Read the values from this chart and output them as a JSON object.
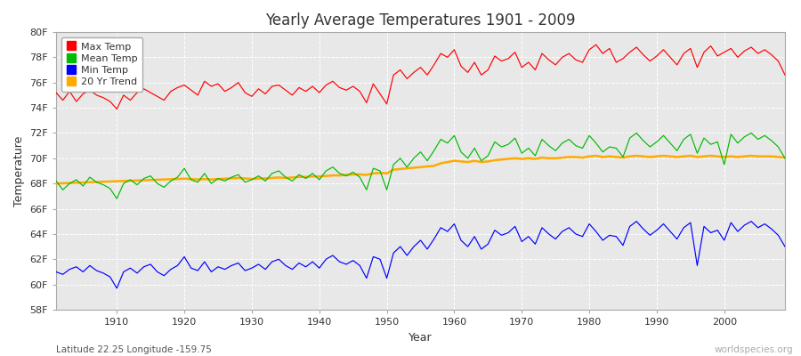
{
  "title": "Yearly Average Temperatures 1901 - 2009",
  "xlabel": "Year",
  "ylabel": "Temperature",
  "subtitle_left": "Latitude 22.25 Longitude -159.75",
  "subtitle_right": "worldspecies.org",
  "years": [
    1901,
    1902,
    1903,
    1904,
    1905,
    1906,
    1907,
    1908,
    1909,
    1910,
    1911,
    1912,
    1913,
    1914,
    1915,
    1916,
    1917,
    1918,
    1919,
    1920,
    1921,
    1922,
    1923,
    1924,
    1925,
    1926,
    1927,
    1928,
    1929,
    1930,
    1931,
    1932,
    1933,
    1934,
    1935,
    1936,
    1937,
    1938,
    1939,
    1940,
    1941,
    1942,
    1943,
    1944,
    1945,
    1946,
    1947,
    1948,
    1949,
    1950,
    1951,
    1952,
    1953,
    1954,
    1955,
    1956,
    1957,
    1958,
    1959,
    1960,
    1961,
    1962,
    1963,
    1964,
    1965,
    1966,
    1967,
    1968,
    1969,
    1970,
    1971,
    1972,
    1973,
    1974,
    1975,
    1976,
    1977,
    1978,
    1979,
    1980,
    1981,
    1982,
    1983,
    1984,
    1985,
    1986,
    1987,
    1988,
    1989,
    1990,
    1991,
    1992,
    1993,
    1994,
    1995,
    1996,
    1997,
    1998,
    1999,
    2000,
    2001,
    2002,
    2003,
    2004,
    2005,
    2006,
    2007,
    2008,
    2009
  ],
  "max_temp": [
    75.2,
    74.6,
    75.3,
    74.5,
    75.1,
    75.4,
    75.0,
    74.8,
    74.5,
    73.9,
    75.0,
    74.6,
    75.2,
    75.5,
    75.2,
    74.9,
    74.6,
    75.3,
    75.6,
    75.8,
    75.4,
    75.0,
    76.1,
    75.7,
    75.9,
    75.3,
    75.6,
    76.0,
    75.2,
    74.9,
    75.5,
    75.1,
    75.7,
    75.8,
    75.4,
    75.0,
    75.6,
    75.3,
    75.7,
    75.2,
    75.8,
    76.1,
    75.6,
    75.4,
    75.7,
    75.3,
    74.4,
    75.9,
    75.1,
    74.3,
    76.6,
    77.0,
    76.3,
    76.8,
    77.2,
    76.6,
    77.4,
    78.3,
    78.0,
    78.6,
    77.3,
    76.8,
    77.6,
    76.6,
    77.0,
    78.1,
    77.7,
    77.9,
    78.4,
    77.2,
    77.6,
    77.0,
    78.3,
    77.8,
    77.4,
    78.0,
    78.3,
    77.8,
    77.6,
    78.6,
    79.0,
    78.3,
    78.7,
    77.6,
    77.9,
    78.4,
    78.8,
    78.2,
    77.7,
    78.1,
    78.6,
    78.0,
    77.4,
    78.3,
    78.7,
    77.2,
    78.4,
    78.9,
    78.1,
    78.4,
    78.7,
    78.0,
    78.5,
    78.8,
    78.3,
    78.6,
    78.2,
    77.7,
    76.6
  ],
  "mean_temp": [
    68.2,
    67.5,
    68.0,
    68.3,
    67.8,
    68.5,
    68.1,
    67.9,
    67.6,
    66.8,
    68.0,
    68.3,
    67.9,
    68.4,
    68.6,
    68.0,
    67.7,
    68.2,
    68.5,
    69.2,
    68.3,
    68.1,
    68.8,
    68.0,
    68.4,
    68.2,
    68.5,
    68.7,
    68.1,
    68.3,
    68.6,
    68.2,
    68.8,
    69.0,
    68.5,
    68.2,
    68.7,
    68.4,
    68.8,
    68.3,
    69.0,
    69.3,
    68.8,
    68.6,
    68.9,
    68.5,
    67.5,
    69.2,
    69.0,
    67.5,
    69.5,
    70.0,
    69.3,
    70.0,
    70.5,
    69.8,
    70.6,
    71.5,
    71.2,
    71.8,
    70.5,
    70.0,
    70.8,
    69.8,
    70.2,
    71.3,
    70.9,
    71.1,
    71.6,
    70.4,
    70.8,
    70.2,
    71.5,
    71.0,
    70.6,
    71.2,
    71.5,
    71.0,
    70.8,
    71.8,
    71.2,
    70.5,
    70.9,
    70.8,
    70.1,
    71.6,
    72.0,
    71.4,
    70.9,
    71.3,
    71.8,
    71.2,
    70.6,
    71.5,
    71.9,
    70.4,
    71.6,
    71.1,
    71.3,
    69.5,
    71.9,
    71.2,
    71.7,
    72.0,
    71.5,
    71.8,
    71.4,
    70.9,
    70.0
  ],
  "min_temp": [
    61.0,
    60.8,
    61.2,
    61.4,
    61.0,
    61.5,
    61.1,
    60.9,
    60.6,
    59.7,
    61.0,
    61.3,
    60.9,
    61.4,
    61.6,
    61.0,
    60.7,
    61.2,
    61.5,
    62.2,
    61.3,
    61.1,
    61.8,
    61.0,
    61.4,
    61.2,
    61.5,
    61.7,
    61.1,
    61.3,
    61.6,
    61.2,
    61.8,
    62.0,
    61.5,
    61.2,
    61.7,
    61.4,
    61.8,
    61.3,
    62.0,
    62.3,
    61.8,
    61.6,
    61.9,
    61.5,
    60.5,
    62.2,
    62.0,
    60.5,
    62.5,
    63.0,
    62.3,
    63.0,
    63.5,
    62.8,
    63.6,
    64.5,
    64.2,
    64.8,
    63.5,
    63.0,
    63.8,
    62.8,
    63.2,
    64.3,
    63.9,
    64.1,
    64.6,
    63.4,
    63.8,
    63.2,
    64.5,
    64.0,
    63.6,
    64.2,
    64.5,
    64.0,
    63.8,
    64.8,
    64.2,
    63.5,
    63.9,
    63.8,
    63.1,
    64.6,
    65.0,
    64.4,
    63.9,
    64.3,
    64.8,
    64.2,
    63.6,
    64.5,
    64.9,
    61.5,
    64.6,
    64.1,
    64.3,
    63.5,
    64.9,
    64.2,
    64.7,
    65.0,
    64.5,
    64.8,
    64.4,
    63.9,
    63.0
  ],
  "trend_values": [
    68.0,
    68.02,
    68.04,
    68.06,
    68.08,
    68.1,
    68.12,
    68.14,
    68.16,
    68.18,
    68.2,
    68.22,
    68.24,
    68.26,
    68.28,
    68.3,
    68.32,
    68.34,
    68.36,
    68.38,
    68.35,
    68.32,
    68.35,
    68.32,
    68.35,
    68.38,
    68.41,
    68.44,
    68.4,
    68.36,
    68.4,
    68.4,
    68.44,
    68.48,
    68.44,
    68.48,
    68.52,
    68.52,
    68.56,
    68.56,
    68.6,
    68.64,
    68.64,
    68.68,
    68.72,
    68.72,
    68.68,
    68.8,
    68.84,
    68.8,
    69.1,
    69.15,
    69.2,
    69.25,
    69.3,
    69.35,
    69.4,
    69.6,
    69.7,
    69.8,
    69.75,
    69.7,
    69.8,
    69.7,
    69.75,
    69.85,
    69.9,
    69.95,
    70.0,
    69.95,
    70.0,
    69.95,
    70.05,
    70.0,
    70.0,
    70.05,
    70.1,
    70.1,
    70.05,
    70.15,
    70.2,
    70.1,
    70.15,
    70.1,
    70.05,
    70.15,
    70.2,
    70.15,
    70.1,
    70.15,
    70.2,
    70.15,
    70.1,
    70.15,
    70.2,
    70.1,
    70.15,
    70.2,
    70.15,
    70.1,
    70.15,
    70.1,
    70.15,
    70.2,
    70.15,
    70.15,
    70.15,
    70.1,
    70.05
  ],
  "colors": {
    "max": "#ff0000",
    "mean": "#00bb00",
    "min": "#0000ff",
    "trend": "#ffaa00",
    "background": "#ffffff",
    "plot_bg": "#e8e8e8",
    "grid": "#ffffff",
    "spine": "#aaaaaa",
    "text": "#333333"
  },
  "ylim": [
    58,
    80
  ],
  "yticks": [
    58,
    60,
    62,
    64,
    66,
    68,
    70,
    72,
    74,
    76,
    78,
    80
  ],
  "xlim": [
    1901,
    2009
  ],
  "xticks": [
    1910,
    1920,
    1930,
    1940,
    1950,
    1960,
    1970,
    1980,
    1990,
    2000
  ],
  "legend_labels": [
    "Max Temp",
    "Mean Temp",
    "Min Temp",
    "20 Yr Trend"
  ]
}
